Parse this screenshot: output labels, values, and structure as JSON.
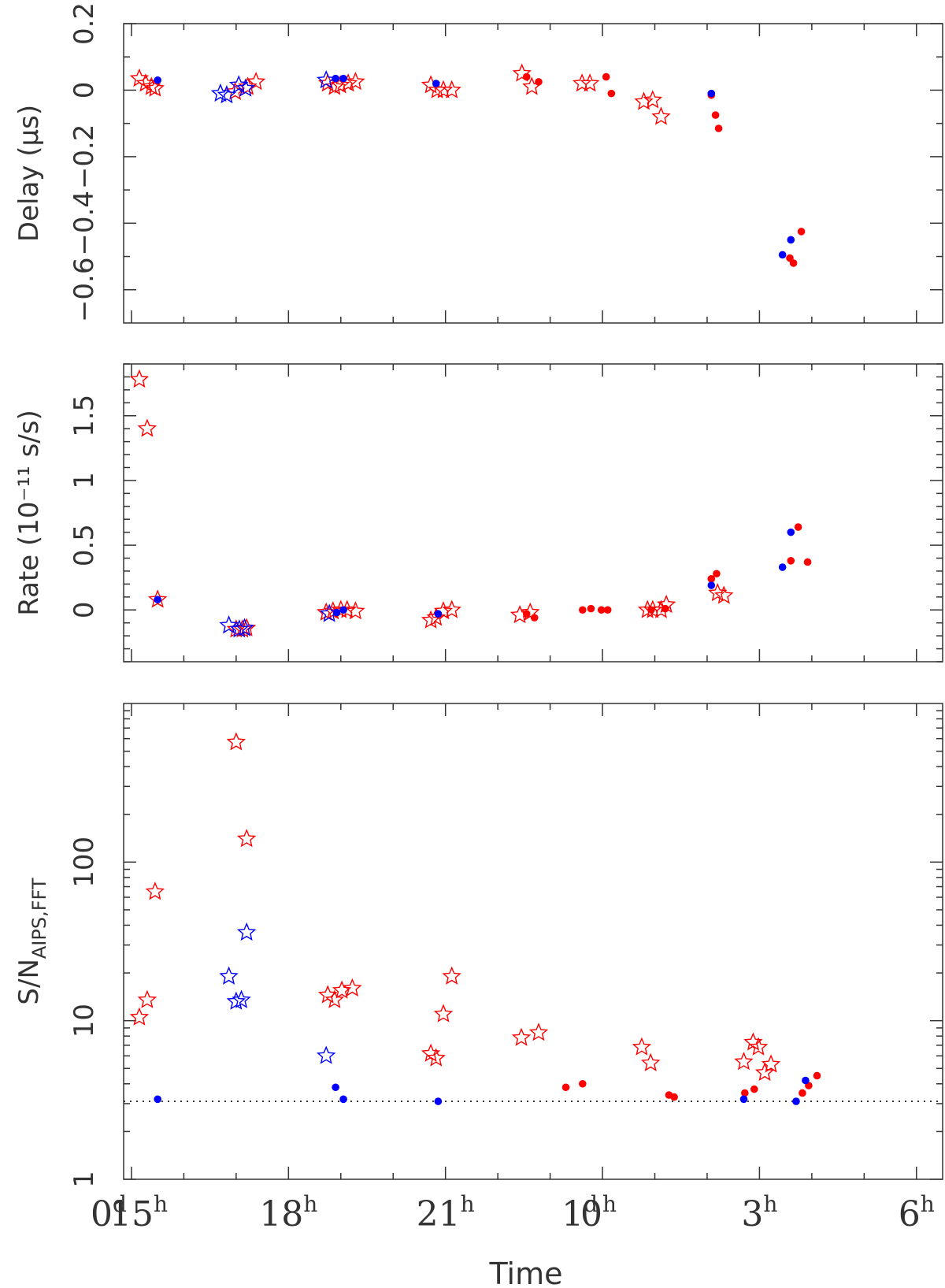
{
  "colors": {
    "red": "#ff0000",
    "blue": "#0000ff",
    "axis": "#333333"
  },
  "chart_data": [
    {
      "id": "delay",
      "type": "scatter",
      "ylabel": "Delay (μs)",
      "ylim": [
        -0.7,
        0.2
      ],
      "yscale": "linear",
      "y_ticks": [
        {
          "v": 0.2,
          "label": "0.2"
        },
        {
          "v": 0,
          "label": "0"
        },
        {
          "v": -0.2,
          "label": "−0.2"
        },
        {
          "v": -0.4,
          "label": "−0.4"
        },
        {
          "v": -0.6,
          "label": "−0.6"
        }
      ],
      "series": [
        {
          "color": "red",
          "marker": "star",
          "x": [
            15.15,
            15.27,
            15.38,
            15.45,
            16.98,
            17.22,
            17.38,
            18.75,
            18.88,
            18.99,
            19.14,
            19.28,
            20.72,
            20.84,
            20.96,
            21.12,
            22.46,
            22.65,
            23.61,
            23.76,
            24.79,
            24.96,
            25.12
          ],
          "y": [
            0.035,
            0.02,
            0.01,
            0.005,
            -0.005,
            0.01,
            0.025,
            0.02,
            0.01,
            0.015,
            0.02,
            0.025,
            0.015,
            0.0,
            0.0,
            0.0,
            0.05,
            0.01,
            0.02,
            0.02,
            -0.035,
            -0.03,
            -0.08
          ]
        },
        {
          "color": "red",
          "marker": "dot",
          "x": [
            22.55,
            22.78,
            24.07,
            24.17,
            26.08,
            26.16,
            26.22,
            27.58,
            27.65,
            27.8
          ],
          "y": [
            0.04,
            0.025,
            0.04,
            -0.01,
            -0.015,
            -0.075,
            -0.115,
            -0.505,
            -0.52,
            -0.425
          ]
        },
        {
          "color": "blue",
          "marker": "star",
          "x": [
            16.7,
            16.82,
            17.05,
            17.18,
            18.72
          ],
          "y": [
            -0.01,
            -0.015,
            0.015,
            0.005,
            0.03
          ]
        },
        {
          "color": "blue",
          "marker": "dot",
          "x": [
            15.5,
            18.9,
            19.05,
            20.82,
            26.08,
            27.44,
            27.6
          ],
          "y": [
            0.03,
            0.035,
            0.035,
            0.02,
            -0.01,
            -0.495,
            -0.45
          ]
        }
      ]
    },
    {
      "id": "rate",
      "type": "scatter",
      "ylabel": "Rate (10⁻¹¹ s/s)",
      "ylim": [
        -0.4,
        1.9
      ],
      "yscale": "linear",
      "y_ticks": [
        {
          "v": 0,
          "label": "0"
        },
        {
          "v": 0.5,
          "label": "0.5"
        },
        {
          "v": 1,
          "label": "1"
        },
        {
          "v": 1.5,
          "label": "1.5"
        }
      ],
      "series": [
        {
          "color": "red",
          "marker": "star",
          "x": [
            15.15,
            15.3,
            15.5,
            17.0,
            17.12,
            17.2,
            18.72,
            18.85,
            19.0,
            19.12,
            19.28,
            20.72,
            20.82,
            20.96,
            21.12,
            22.42,
            22.62,
            24.86,
            24.96,
            25.12,
            25.22,
            26.2,
            26.32
          ],
          "y": [
            1.78,
            1.4,
            0.08,
            -0.15,
            -0.15,
            -0.14,
            -0.02,
            -0.01,
            0.0,
            0.0,
            -0.01,
            -0.08,
            -0.06,
            -0.01,
            0.0,
            -0.04,
            -0.02,
            0.0,
            0.0,
            0.0,
            0.04,
            0.13,
            0.11
          ]
        },
        {
          "color": "red",
          "marker": "dot",
          "x": [
            22.55,
            22.7,
            23.62,
            23.78,
            23.98,
            24.1,
            24.93,
            25.2,
            26.08,
            26.18,
            27.6,
            27.74,
            27.92
          ],
          "y": [
            -0.03,
            -0.06,
            0.0,
            0.01,
            0.0,
            0.0,
            0.0,
            0.01,
            0.24,
            0.28,
            0.38,
            0.64,
            0.37
          ]
        },
        {
          "color": "blue",
          "marker": "star",
          "x": [
            16.86,
            17.06,
            17.16,
            18.78
          ],
          "y": [
            -0.12,
            -0.15,
            -0.14,
            -0.03
          ]
        },
        {
          "color": "blue",
          "marker": "dot",
          "x": [
            15.5,
            18.92,
            19.05,
            20.86,
            26.08,
            27.44,
            27.6
          ],
          "y": [
            0.08,
            -0.02,
            0.0,
            -0.03,
            0.19,
            0.33,
            0.6
          ]
        }
      ]
    },
    {
      "id": "snr",
      "type": "scatter",
      "ylabel": "S/N",
      "ylabel_sub": "AIPS,FFT",
      "ylim": [
        1,
        1000
      ],
      "yscale": "log",
      "threshold_line": 3.1,
      "y_ticks": [
        {
          "v": 1,
          "label": "1"
        },
        {
          "v": 10,
          "label": "10"
        },
        {
          "v": 100,
          "label": "100"
        }
      ],
      "xlabel": "Time",
      "x_ticks": [
        {
          "v": 15,
          "label": "15",
          "sup": "h"
        },
        {
          "v": 18,
          "label": "18",
          "sup": "h"
        },
        {
          "v": 21,
          "label": "21",
          "sup": "h"
        },
        {
          "v": 24,
          "label": "0",
          "sup": "h"
        },
        {
          "v": 27,
          "label": "3",
          "sup": "h"
        },
        {
          "v": 30,
          "label": "6",
          "sup": "h"
        }
      ],
      "day_labels": [
        {
          "v": 15,
          "label": "0",
          "sup": "d"
        },
        {
          "v": 24,
          "label": "1",
          "sup": "d"
        }
      ],
      "series": [
        {
          "color": "red",
          "marker": "star",
          "x": [
            15.15,
            15.3,
            15.45,
            17.0,
            17.2,
            18.75,
            18.88,
            19.02,
            19.22,
            20.72,
            20.82,
            20.96,
            21.12,
            22.45,
            22.78,
            24.75,
            24.92,
            26.7,
            26.88,
            26.98,
            27.1,
            27.22
          ],
          "y": [
            10.5,
            13.5,
            65,
            570,
            140,
            14.5,
            13.5,
            15.5,
            16,
            6.2,
            5.8,
            11,
            19,
            7.8,
            8.4,
            6.8,
            5.4,
            5.5,
            7.3,
            6.8,
            4.7,
            5.3
          ]
        },
        {
          "color": "red",
          "marker": "dot",
          "x": [
            23.3,
            23.62,
            25.27,
            25.37,
            26.72,
            26.9,
            27.82,
            27.94,
            28.1
          ],
          "y": [
            3.8,
            4.0,
            3.4,
            3.3,
            3.5,
            3.7,
            3.5,
            3.9,
            4.5
          ]
        },
        {
          "color": "blue",
          "marker": "star",
          "x": [
            16.86,
            17.0,
            17.1,
            17.2,
            18.72
          ],
          "y": [
            19,
            13.2,
            13.5,
            36,
            6.0
          ]
        },
        {
          "color": "blue",
          "marker": "dot",
          "x": [
            15.5,
            18.9,
            19.05,
            20.86,
            26.7,
            27.7,
            27.88
          ],
          "y": [
            3.2,
            3.8,
            3.2,
            3.1,
            3.2,
            3.1,
            4.2
          ]
        }
      ]
    }
  ]
}
